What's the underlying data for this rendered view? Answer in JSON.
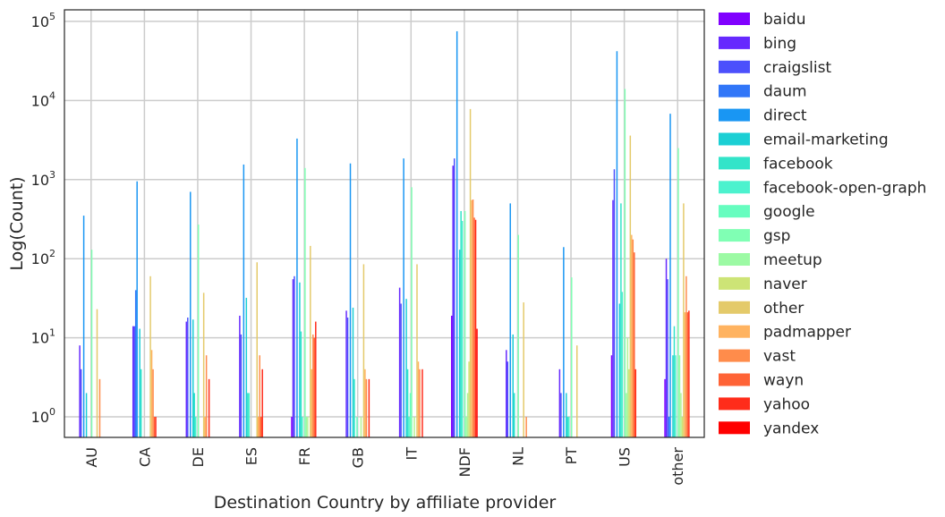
{
  "chart_data": {
    "type": "bar",
    "title": "",
    "xlabel": "Destination Country by affiliate provider",
    "ylabel": "Log(Count)",
    "yscale": "log",
    "ylim": [
      0.55,
      140000
    ],
    "y_ticks": [
      {
        "base": "10",
        "exp": "0",
        "value": 1
      },
      {
        "base": "10",
        "exp": "1",
        "value": 10
      },
      {
        "base": "10",
        "exp": "2",
        "value": 100
      },
      {
        "base": "10",
        "exp": "3",
        "value": 1000
      },
      {
        "base": "10",
        "exp": "4",
        "value": 10000
      },
      {
        "base": "10",
        "exp": "5",
        "value": 100000
      }
    ],
    "grid": true,
    "legend_position": "right",
    "categories": [
      "AU",
      "CA",
      "DE",
      "ES",
      "FR",
      "GB",
      "IT",
      "NDF",
      "NL",
      "PT",
      "US",
      "other"
    ],
    "series": [
      {
        "name": "baidu",
        "color": "#8000ff",
        "values": [
          null,
          null,
          null,
          null,
          1,
          null,
          null,
          19,
          null,
          null,
          6,
          3
        ]
      },
      {
        "name": "bing",
        "color": "#6629fe",
        "values": [
          8,
          14,
          16,
          19,
          55,
          22,
          43,
          1500,
          7,
          4,
          550,
          100
        ]
      },
      {
        "name": "craigslist",
        "color": "#4c50fc",
        "values": [
          4,
          14,
          18,
          11,
          60,
          18,
          27,
          1850,
          5,
          2,
          1350,
          55
        ]
      },
      {
        "name": "daum",
        "color": "#3176f8",
        "values": [
          null,
          40,
          null,
          null,
          null,
          null,
          null,
          null,
          null,
          null,
          null,
          1
        ]
      },
      {
        "name": "direct",
        "color": "#1996f3",
        "values": [
          350,
          950,
          700,
          1550,
          3300,
          1600,
          1850,
          75000,
          500,
          140,
          42000,
          6800
        ]
      },
      {
        "name": "email-marketing",
        "color": "#00b5eb",
        "values": [
          null,
          null,
          null,
          null,
          null,
          null,
          null,
          null,
          null,
          null,
          null,
          null
        ]
      },
      {
        "name": "facebook",
        "color": "#1bcfd4",
        "values": [
          2,
          13,
          17,
          32,
          50,
          24,
          31,
          130,
          11,
          2,
          27,
          6
        ]
      },
      {
        "name": "facebook-open-graph",
        "color": "#32e4c9",
        "values": [
          null,
          4,
          2,
          2,
          12,
          3,
          4,
          400,
          2,
          1,
          500,
          14
        ]
      },
      {
        "name": "google",
        "color": "#4cf2ce",
        "values": [
          null,
          null,
          1,
          2,
          1,
          null,
          1,
          300,
          null,
          1,
          38,
          6
        ]
      },
      {
        "name": "gsp",
        "color": "#66fdbf",
        "values": [
          null,
          null,
          null,
          null,
          null,
          1,
          2,
          null,
          null,
          null,
          null,
          null
        ]
      },
      {
        "name": "meetup",
        "color": "#80ffb4",
        "values": [
          130,
          0,
          270,
          0,
          1400,
          0,
          800,
          400,
          200,
          58,
          14000,
          2500
        ]
      },
      {
        "name": "naver",
        "color": "#9cfaa4",
        "values": [
          null,
          null,
          null,
          null,
          1,
          null,
          null,
          1,
          null,
          null,
          2,
          6
        ]
      },
      {
        "name": "other",
        "color": "#b2f296",
        "values": [
          null,
          null,
          null,
          null,
          1,
          1,
          1,
          2,
          null,
          null,
          10,
          2
        ]
      },
      {
        "name": "padmapper",
        "color": "#cde476",
        "values": [
          null,
          null,
          null,
          null,
          null,
          null,
          null,
          5,
          null,
          null,
          4,
          1
        ]
      },
      {
        "name": "vast",
        "color": "#e4ca6a",
        "values": [
          23,
          60,
          37,
          90,
          145,
          85,
          85,
          7800,
          28,
          8,
          3600,
          500
        ]
      },
      {
        "name": "wayn",
        "color": "#ffb360",
        "values": [
          null,
          7,
          1,
          1,
          4,
          4,
          5,
          550,
          null,
          null,
          200,
          21
        ]
      },
      {
        "name": "yahoo",
        "color": "#ff8c4b",
        "values": [
          3,
          4,
          6,
          6,
          11,
          3,
          4,
          560,
          1,
          null,
          175,
          60
        ]
      },
      {
        "name": "yandex",
        "color": "#ff6336",
        "values": [
          null,
          1,
          null,
          1,
          10,
          null,
          null,
          330,
          null,
          null,
          120,
          21
        ]
      },
      {
        "name": "",
        "color": "#ff2c1a",
        "values": [
          null,
          1,
          3,
          4,
          16,
          3,
          4,
          310,
          null,
          null,
          4,
          22
        ]
      },
      {
        "name": "",
        "color": "#ff0000",
        "values": [
          null,
          null,
          null,
          null,
          null,
          null,
          null,
          13,
          null,
          null,
          null,
          null
        ]
      }
    ],
    "legend": [
      {
        "name": "baidu",
        "color": "#8000ff"
      },
      {
        "name": "bing",
        "color": "#6629fe"
      },
      {
        "name": "craigslist",
        "color": "#4c50fc"
      },
      {
        "name": "daum",
        "color": "#3176f8"
      },
      {
        "name": "direct",
        "color": "#1996f3"
      },
      {
        "name": "email-marketing",
        "color": "#1bcfd4"
      },
      {
        "name": "facebook",
        "color": "#32e4c9"
      },
      {
        "name": "facebook-open-graph",
        "color": "#4cf2ce"
      },
      {
        "name": "google",
        "color": "#66fdbf"
      },
      {
        "name": "gsp",
        "color": "#80ffb4"
      },
      {
        "name": "meetup",
        "color": "#9cfaa4"
      },
      {
        "name": "naver",
        "color": "#cde476"
      },
      {
        "name": "other",
        "color": "#e4ca6a"
      },
      {
        "name": "padmapper",
        "color": "#ffb360"
      },
      {
        "name": "vast",
        "color": "#ff8c4b"
      },
      {
        "name": "wayn",
        "color": "#ff6336"
      },
      {
        "name": "yahoo",
        "color": "#ff2c1a"
      },
      {
        "name": "yandex",
        "color": "#ff0000"
      }
    ]
  }
}
